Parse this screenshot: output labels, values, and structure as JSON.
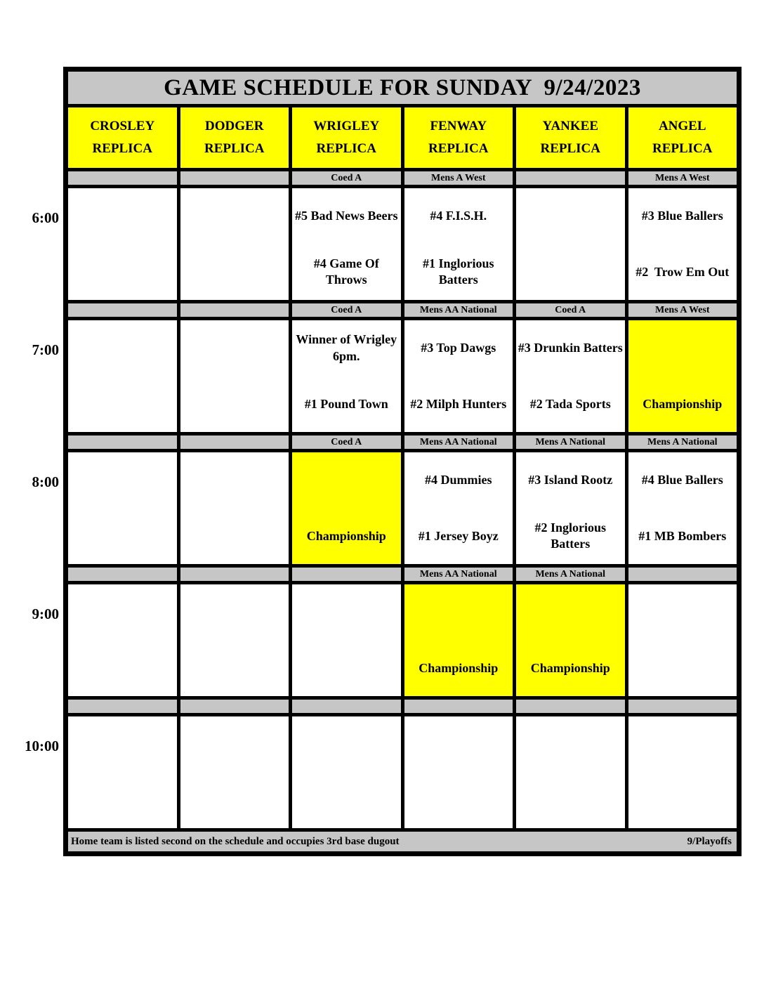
{
  "title": "GAME SCHEDULE FOR SUNDAY  9/24/2023",
  "fields": [
    {
      "name": "CROSLEY",
      "type": "REPLICA"
    },
    {
      "name": "DODGER",
      "type": "REPLICA"
    },
    {
      "name": "WRIGLEY",
      "type": "REPLICA"
    },
    {
      "name": "FENWAY",
      "type": "REPLICA"
    },
    {
      "name": "YANKEE",
      "type": "REPLICA"
    },
    {
      "name": "ANGEL",
      "type": "REPLICA"
    }
  ],
  "slots": [
    {
      "time": "6:00",
      "cells": [
        {
          "division": "",
          "team1": "",
          "team2": "",
          "highlight": false
        },
        {
          "division": "",
          "team1": "",
          "team2": "",
          "highlight": false
        },
        {
          "division": "Coed A",
          "team1": "#5 Bad News Beers",
          "team2": "#4 Game Of Throws",
          "highlight": false
        },
        {
          "division": "Mens A West",
          "team1": "#4 F.I.S.H.",
          "team2": "#1 Inglorious Batters",
          "highlight": false
        },
        {
          "division": "",
          "team1": "",
          "team2": "",
          "highlight": false
        },
        {
          "division": "Mens A West",
          "team1": "#3 Blue Ballers",
          "team2": "#2  Trow Em Out",
          "highlight": false
        }
      ]
    },
    {
      "time": "7:00",
      "cells": [
        {
          "division": "",
          "team1": "",
          "team2": "",
          "highlight": false
        },
        {
          "division": "",
          "team1": "",
          "team2": "",
          "highlight": false
        },
        {
          "division": "Coed A",
          "team1": "Winner of Wrigley 6pm.",
          "team2": "#1 Pound Town",
          "highlight": false
        },
        {
          "division": "Mens AA National",
          "team1": "#3 Top Dawgs",
          "team2": "#2 Milph Hunters",
          "highlight": false
        },
        {
          "division": "Coed A",
          "team1": "#3 Drunkin Batters",
          "team2": "#2 Tada Sports",
          "highlight": false
        },
        {
          "division": "Mens A West",
          "team1": "",
          "team2": "Championship",
          "highlight": true
        }
      ]
    },
    {
      "time": "8:00",
      "cells": [
        {
          "division": "",
          "team1": "",
          "team2": "",
          "highlight": false
        },
        {
          "division": "",
          "team1": "",
          "team2": "",
          "highlight": false
        },
        {
          "division": "Coed A",
          "team1": "",
          "team2": "Championship",
          "highlight": true
        },
        {
          "division": "Mens AA National",
          "team1": "#4 Dummies",
          "team2": "#1 Jersey Boyz",
          "highlight": false
        },
        {
          "division": "Mens A National",
          "team1": "#3 Island Rootz",
          "team2": "#2 Inglorious Batters",
          "highlight": false
        },
        {
          "division": "Mens A National",
          "team1": "#4 Blue Ballers",
          "team2": "#1 MB Bombers",
          "highlight": false
        }
      ]
    },
    {
      "time": "9:00",
      "cells": [
        {
          "division": "",
          "team1": "",
          "team2": "",
          "highlight": false
        },
        {
          "division": "",
          "team1": "",
          "team2": "",
          "highlight": false
        },
        {
          "division": "",
          "team1": "",
          "team2": "",
          "highlight": false
        },
        {
          "division": "Mens AA National",
          "team1": "",
          "team2": "Championship",
          "highlight": true
        },
        {
          "division": "Mens A National",
          "team1": "",
          "team2": "Championship",
          "highlight": true
        },
        {
          "division": "",
          "team1": "",
          "team2": "",
          "highlight": false
        }
      ]
    },
    {
      "time": "10:00",
      "cells": [
        {
          "division": "",
          "team1": "",
          "team2": "",
          "highlight": false
        },
        {
          "division": "",
          "team1": "",
          "team2": "",
          "highlight": false
        },
        {
          "division": "",
          "team1": "",
          "team2": "",
          "highlight": false
        },
        {
          "division": "",
          "team1": "",
          "team2": "",
          "highlight": false
        },
        {
          "division": "",
          "team1": "",
          "team2": "",
          "highlight": false
        },
        {
          "division": "",
          "team1": "",
          "team2": "",
          "highlight": false
        }
      ]
    }
  ],
  "footer": {
    "note": "Home team is listed second on the schedule and occupies 3rd base dugout",
    "page_label": "9/Playoffs"
  },
  "colors": {
    "band_gray": "#C6C6C6",
    "highlight_yellow": "#FFFF00",
    "header_yellow": "#FFFF00",
    "border_black": "#000000"
  }
}
